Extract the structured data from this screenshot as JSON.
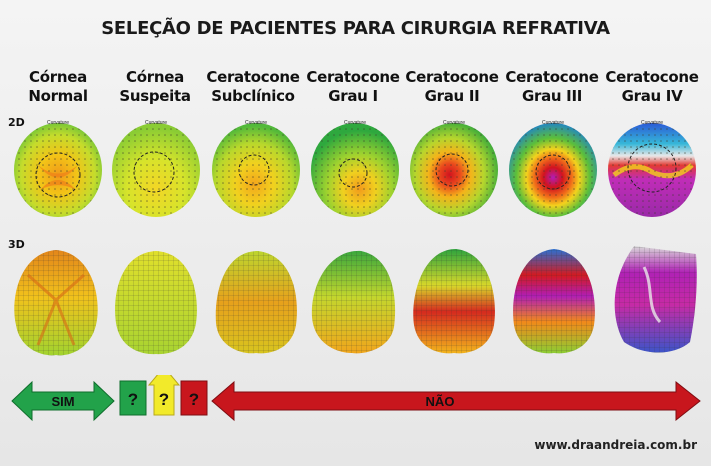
{
  "title": "SELEÇÃO DE PACIENTES PARA CIRURGIA REFRATIVA",
  "columns": [
    {
      "line1": "Córnea",
      "line2": "Normal"
    },
    {
      "line1": "Córnea",
      "line2": "Suspeita"
    },
    {
      "line1": "Ceratocone",
      "line2": "Subclínico"
    },
    {
      "line1": "Ceratocone",
      "line2": "Grau I"
    },
    {
      "line1": "Ceratocone",
      "line2": "Grau II"
    },
    {
      "line1": "Ceratocone",
      "line2": "Grau III"
    },
    {
      "line1": "Ceratocone",
      "line2": "Grau IV"
    }
  ],
  "rows": {
    "two_d": "2D",
    "three_d": "3D"
  },
  "map_label": "Curvature",
  "indicators": {
    "sim": "SIM",
    "q1": "?",
    "q2": "?",
    "q3": "?",
    "nao": "NÃO"
  },
  "colors": {
    "sim": "#22a24a",
    "q1": "#22a24a",
    "q2": "#f2ea2a",
    "q3": "#c8161d",
    "nao": "#c8161d"
  },
  "footer": "www.draandreia.com.br"
}
